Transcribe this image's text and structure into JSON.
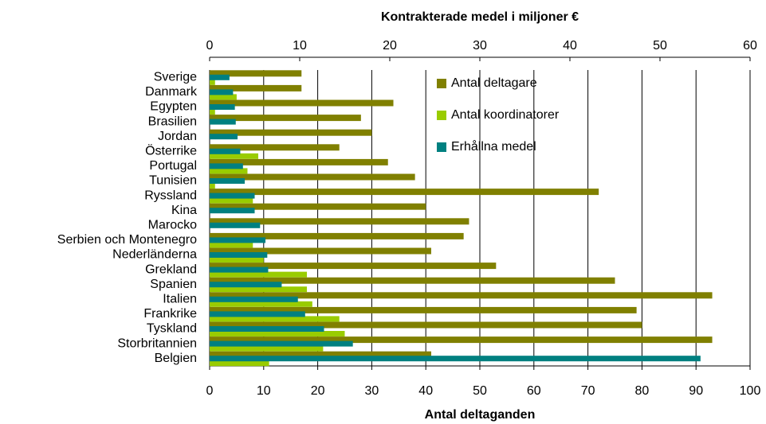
{
  "chart_data": {
    "type": "bar",
    "orientation": "horizontal",
    "x_label": "Antal deltaganden",
    "x2_label": "Kontrakterade medel i miljoner €",
    "categories": [
      "Sverige",
      "Danmark",
      "Egypten",
      "Brasilien",
      "Jordan",
      "Österrike",
      "Portugal",
      "Tunisien",
      "Ryssland",
      "Kina",
      "Marocko",
      "Serbien och Montenegro",
      "Nederländerna",
      "Grekland",
      "Spanien",
      "Italien",
      "Frankrike",
      "Tyskland",
      "Storbritannien",
      "Belgien"
    ],
    "series": [
      {
        "name": "Antal deltagare",
        "color": "#808000",
        "axis": "x",
        "values": [
          17,
          17,
          34,
          28,
          30,
          24,
          33,
          38,
          72,
          40,
          48,
          47,
          41,
          53,
          75,
          93,
          79,
          80,
          93,
          41
        ]
      },
      {
        "name": "Antal koordinatorer",
        "color": "#99cc00",
        "axis": "x",
        "values": [
          1,
          5,
          1,
          0,
          0,
          9,
          7,
          1,
          8,
          0,
          0,
          8,
          10,
          18,
          18,
          19,
          24,
          25,
          21,
          11
        ]
      },
      {
        "name": "Erhållna medel",
        "color": "#008080",
        "axis": "x2",
        "values": [
          2.2,
          2.6,
          2.8,
          2.9,
          3.1,
          3.4,
          3.7,
          3.9,
          5.0,
          5.0,
          5.6,
          6.2,
          6.4,
          6.5,
          8.0,
          9.8,
          10.6,
          12.7,
          15.9,
          54.5
        ]
      }
    ],
    "xlim": [
      0,
      100
    ],
    "xticks": [
      0,
      10,
      20,
      30,
      40,
      50,
      60,
      70,
      80,
      90,
      100
    ],
    "x2lim": [
      0,
      60
    ],
    "x2ticks": [
      0,
      10,
      20,
      30,
      40,
      50,
      60
    ],
    "grid": true,
    "legend": "top"
  }
}
